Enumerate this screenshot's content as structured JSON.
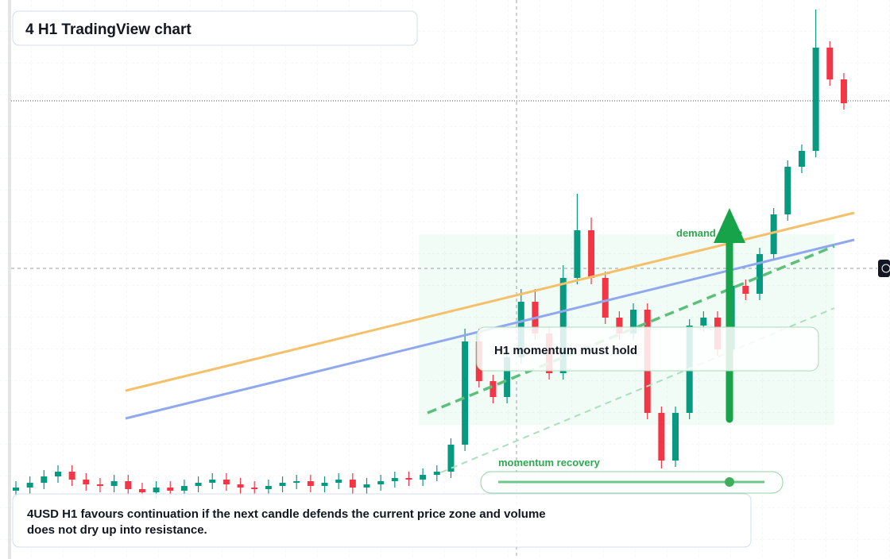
{
  "header": {
    "title": "4 H1 TradingView chart"
  },
  "chart": {
    "ylim": [
      0,
      704
    ],
    "up_color": "#089981",
    "down_color": "#f23645",
    "candles": [
      [
        86,
        98,
        78,
        90
      ],
      [
        90,
        104,
        82,
        96
      ],
      [
        96,
        112,
        88,
        104
      ],
      [
        104,
        118,
        96,
        110
      ],
      [
        110,
        118,
        92,
        100
      ],
      [
        100,
        108,
        86,
        94
      ],
      [
        94,
        102,
        84,
        92
      ],
      [
        92,
        106,
        84,
        98
      ],
      [
        98,
        106,
        80,
        88
      ],
      [
        88,
        96,
        76,
        84
      ],
      [
        84,
        98,
        76,
        90
      ],
      [
        90,
        98,
        78,
        86
      ],
      [
        86,
        100,
        78,
        92
      ],
      [
        92,
        104,
        84,
        96
      ],
      [
        96,
        108,
        88,
        100
      ],
      [
        100,
        108,
        86,
        94
      ],
      [
        94,
        102,
        82,
        90
      ],
      [
        90,
        98,
        80,
        88
      ],
      [
        88,
        100,
        80,
        92
      ],
      [
        92,
        104,
        84,
        96
      ],
      [
        96,
        106,
        88,
        98
      ],
      [
        98,
        106,
        84,
        92
      ],
      [
        92,
        104,
        84,
        96
      ],
      [
        96,
        108,
        88,
        100
      ],
      [
        100,
        108,
        82,
        90
      ],
      [
        90,
        102,
        82,
        94
      ],
      [
        94,
        106,
        86,
        98
      ],
      [
        98,
        110,
        90,
        102
      ],
      [
        102,
        110,
        92,
        100
      ],
      [
        100,
        114,
        92,
        106
      ],
      [
        106,
        118,
        98,
        110
      ],
      [
        110,
        152,
        102,
        144
      ],
      [
        144,
        290,
        136,
        274
      ],
      [
        274,
        290,
        216,
        224
      ],
      [
        224,
        232,
        196,
        204
      ],
      [
        204,
        262,
        196,
        254
      ],
      [
        254,
        340,
        246,
        324
      ],
      [
        324,
        340,
        276,
        284
      ],
      [
        284,
        292,
        226,
        234
      ],
      [
        234,
        370,
        226,
        354
      ],
      [
        354,
        460,
        346,
        414
      ],
      [
        414,
        430,
        346,
        354
      ],
      [
        354,
        362,
        296,
        304
      ],
      [
        304,
        312,
        276,
        284
      ],
      [
        284,
        322,
        276,
        314
      ],
      [
        314,
        322,
        176,
        184
      ],
      [
        184,
        192,
        114,
        124
      ],
      [
        124,
        192,
        116,
        184
      ],
      [
        184,
        302,
        176,
        294
      ],
      [
        294,
        312,
        286,
        304
      ],
      [
        304,
        312,
        256,
        264
      ],
      [
        264,
        352,
        256,
        344
      ],
      [
        344,
        352,
        326,
        334
      ],
      [
        334,
        392,
        326,
        384
      ],
      [
        384,
        442,
        376,
        434
      ],
      [
        434,
        502,
        426,
        494
      ],
      [
        494,
        522,
        486,
        514
      ],
      [
        514,
        692,
        506,
        644
      ],
      [
        644,
        652,
        596,
        604
      ],
      [
        604,
        612,
        566,
        574
      ]
    ]
  },
  "annotations": {
    "zone_label": "demand zone",
    "callout": "H1 momentum must hold",
    "slider_label": "momentum recovery"
  },
  "footer": {
    "text": "4USD H1 favours continuation if the next candle defends the current price zone and volume does not dry up into resistance."
  }
}
